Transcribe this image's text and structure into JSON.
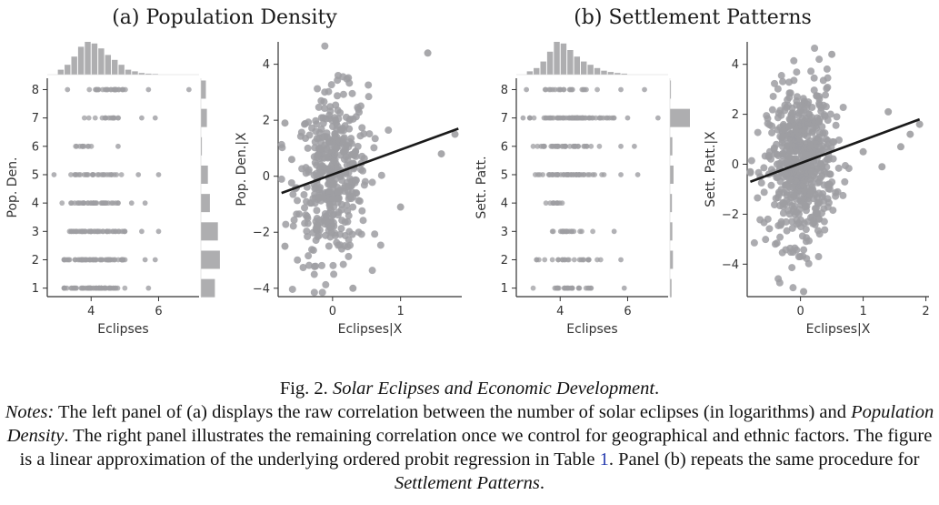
{
  "panel_titles": {
    "a": "(a) Population Density",
    "b": "(b) Settlement Patterns"
  },
  "caption": {
    "fig_prefix": "Fig. 2. ",
    "fig_title": "Solar Eclipses and Economic Development",
    "fig_end": ".",
    "notes_label": "Notes:",
    "seg1": " The left panel of (a) displays the raw correlation between the number of solar eclipses (in logarithms) and ",
    "pop_density": "Population Density",
    "seg2": ". The right panel illustrates the remaining correlation once we control for geographical and ethnic factors. The figure is a linear approximation of the underlying ordered probit regression in Table ",
    "table_ref": "1",
    "seg3": ". Panel (b) repeats the same procedure for ",
    "sett_patterns": "Settlement Patterns",
    "seg4": "."
  },
  "colors": {
    "points": "#9e9ea2",
    "bars": "#aeaeb0",
    "fit_line": "#1a1a1a",
    "axis": "#333333"
  },
  "chart_data": [
    {
      "id": "a-raw",
      "type": "scatter",
      "xlabel": "Eclipses",
      "ylabel": "Pop. Den.",
      "xlim": [
        2.7,
        7.2
      ],
      "ylim": [
        0.7,
        8.4
      ],
      "xticks": [
        4,
        6
      ],
      "yticks": [
        1,
        2,
        3,
        4,
        5,
        6,
        7,
        8
      ],
      "categories_y": [
        1,
        2,
        3,
        4,
        5,
        6,
        7,
        8
      ],
      "rows": [
        {
          "y": 1,
          "x_range": [
            3.2,
            5.0
          ],
          "count": 60,
          "outliers": [
            5.7
          ]
        },
        {
          "y": 2,
          "x_range": [
            3.2,
            5.1
          ],
          "count": 62,
          "outliers": [
            5.6,
            5.9
          ]
        },
        {
          "y": 3,
          "x_range": [
            3.1,
            5.0
          ],
          "count": 48,
          "outliers": [
            5.5,
            6.0
          ]
        },
        {
          "y": 4,
          "x_range": [
            3.1,
            4.8
          ],
          "count": 34,
          "outliers": [
            5.2,
            5.6
          ]
        },
        {
          "y": 5,
          "x_range": [
            3.4,
            4.9
          ],
          "count": 26,
          "outliers": [
            2.9,
            5.4,
            6.0
          ]
        },
        {
          "y": 6,
          "x_range": [
            3.5,
            4.1
          ],
          "count": 10,
          "outliers": [
            4.8
          ]
        },
        {
          "y": 7,
          "x_range": [
            3.8,
            4.9
          ],
          "count": 16,
          "outliers": [
            5.5,
            5.9
          ]
        },
        {
          "y": 8,
          "x_range": [
            3.9,
            5.2
          ],
          "count": 28,
          "outliers": [
            3.3,
            5.7,
            6.9
          ]
        }
      ],
      "marginal_x": {
        "bins": [
          3.1,
          3.3,
          3.5,
          3.7,
          3.9,
          4.1,
          4.3,
          4.5,
          4.7,
          4.9,
          5.1,
          5.3,
          5.5,
          5.7,
          5.9
        ],
        "heights": [
          0.15,
          0.3,
          0.55,
          0.85,
          1.0,
          0.95,
          0.8,
          0.6,
          0.45,
          0.3,
          0.15,
          0.1,
          0.05,
          0.03,
          0.02
        ]
      },
      "marginal_y": [
        0.7,
        0.95,
        0.85,
        0.45,
        0.35,
        0.05,
        0.3,
        0.25
      ]
    },
    {
      "id": "a-resid",
      "type": "scatter",
      "xlabel": "Eclipses|X",
      "ylabel": "Pop. Den.|X",
      "xlim": [
        -0.8,
        1.9
      ],
      "ylim": [
        -4.3,
        4.8
      ],
      "xticks": [
        0,
        1
      ],
      "yticks": [
        -4,
        -2,
        0,
        2,
        4
      ],
      "cloud": {
        "x_sd": 0.26,
        "y_sd": 1.45,
        "count": 440,
        "outliers": [
          [
            1.4,
            4.4
          ],
          [
            -0.7,
            1.9
          ],
          [
            1.8,
            1.5
          ],
          [
            1.6,
            0.8
          ],
          [
            1.0,
            -1.1
          ],
          [
            -0.6,
            0.6
          ],
          [
            0.3,
            -4.0
          ],
          [
            -0.7,
            -2.5
          ]
        ]
      },
      "fit_line": {
        "x": [
          -0.75,
          1.85
        ],
        "y": [
          -0.6,
          1.7
        ]
      }
    },
    {
      "id": "b-raw",
      "type": "scatter",
      "xlabel": "Eclipses",
      "ylabel": "Sett. Patt.",
      "xlim": [
        2.7,
        7.2
      ],
      "ylim": [
        0.7,
        8.4
      ],
      "xticks": [
        4,
        6
      ],
      "yticks": [
        1,
        2,
        3,
        4,
        5,
        6,
        7,
        8
      ],
      "categories_y": [
        1,
        2,
        3,
        4,
        5,
        6,
        7,
        8
      ],
      "rows": [
        {
          "y": 1,
          "x_range": [
            3.2,
            5.0
          ],
          "count": 26,
          "outliers": [
            5.9
          ]
        },
        {
          "y": 2,
          "x_range": [
            3.3,
            5.2
          ],
          "count": 24,
          "outliers": [
            5.8
          ]
        },
        {
          "y": 3,
          "x_range": [
            3.4,
            5.0
          ],
          "count": 20,
          "outliers": [
            5.6
          ]
        },
        {
          "y": 4,
          "x_range": [
            3.4,
            4.3
          ],
          "count": 10,
          "outliers": []
        },
        {
          "y": 5,
          "x_range": [
            3.2,
            5.3
          ],
          "count": 42,
          "outliers": [
            5.8,
            6.3
          ]
        },
        {
          "y": 6,
          "x_range": [
            3.2,
            5.3
          ],
          "count": 38,
          "outliers": [
            5.8,
            6.2
          ]
        },
        {
          "y": 7,
          "x_range": [
            3.1,
            5.6
          ],
          "count": 70,
          "outliers": [
            2.9,
            6.0,
            6.9
          ]
        },
        {
          "y": 8,
          "x_range": [
            3.5,
            5.1
          ],
          "count": 20,
          "outliers": [
            3.0,
            5.8,
            6.5
          ]
        }
      ],
      "marginal_x": {
        "bins": [
          3.1,
          3.3,
          3.5,
          3.7,
          3.9,
          4.1,
          4.3,
          4.5,
          4.7,
          4.9,
          5.1,
          5.3,
          5.5,
          5.7,
          5.9
        ],
        "heights": [
          0.1,
          0.2,
          0.4,
          0.7,
          1.0,
          0.95,
          0.75,
          0.55,
          0.4,
          0.3,
          0.2,
          0.12,
          0.08,
          0.05,
          0.03
        ]
      },
      "marginal_y": [
        0.08,
        0.15,
        0.12,
        0.1,
        0.18,
        0.12,
        1.0,
        0.05
      ]
    },
    {
      "id": "b-resid",
      "type": "scatter",
      "xlabel": "Eclipses|X",
      "ylabel": "Sett. Patt.|X",
      "xlim": [
        -0.85,
        2.05
      ],
      "ylim": [
        -5.3,
        4.9
      ],
      "xticks": [
        0,
        1,
        2
      ],
      "yticks": [
        -4,
        -2,
        0,
        2,
        4
      ],
      "cloud": {
        "x_sd": 0.26,
        "y_sd": 1.55,
        "count": 620,
        "outliers": [
          [
            1.9,
            1.6
          ],
          [
            1.75,
            1.2
          ],
          [
            1.6,
            0.7
          ],
          [
            1.4,
            2.1
          ],
          [
            1.3,
            -0.1
          ],
          [
            0.05,
            -5.1
          ],
          [
            -0.8,
            -0.3
          ],
          [
            0.5,
            4.4
          ],
          [
            1.0,
            0.5
          ]
        ]
      },
      "fit_line": {
        "x": [
          -0.8,
          1.9
        ],
        "y": [
          -0.7,
          1.8
        ]
      }
    }
  ]
}
